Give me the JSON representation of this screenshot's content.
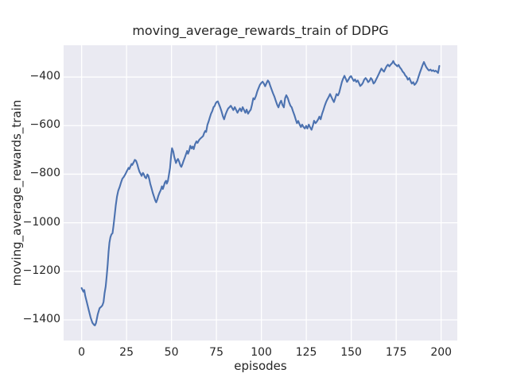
{
  "chart_data": {
    "type": "line",
    "title": "moving_average_rewards_train of DDPG",
    "xlabel": "episodes",
    "ylabel": "moving_average_rewards_train",
    "legend": "none",
    "grid": true,
    "background_color": "#EAEAF2",
    "grid_color": "#FFFFFF",
    "line_color": "#4C72B0",
    "text_color": "#262626",
    "xlim": [
      -10,
      209
    ],
    "ylim": [
      -1485,
      -269
    ],
    "x_tick_values": [
      0,
      25,
      50,
      75,
      100,
      125,
      150,
      175,
      200
    ],
    "x_tick_labels": [
      "0",
      "25",
      "50",
      "75",
      "100",
      "125",
      "150",
      "175",
      "200"
    ],
    "y_tick_values": [
      -400,
      -600,
      -800,
      -1000,
      -1200,
      -1400
    ],
    "y_tick_labels": [
      "−400",
      "−600",
      "−800",
      "−1000",
      "−1200",
      "−1400"
    ],
    "series": [
      {
        "name": "moving_average_rewards_train",
        "points": [
          [
            0,
            -1269
          ],
          [
            1,
            -1284
          ],
          [
            1.5,
            -1277
          ],
          [
            2,
            -1300
          ],
          [
            3,
            -1330
          ],
          [
            4,
            -1360
          ],
          [
            5,
            -1390
          ],
          [
            6,
            -1412
          ],
          [
            7,
            -1421
          ],
          [
            7.4,
            -1423
          ],
          [
            8,
            -1413
          ],
          [
            9,
            -1377
          ],
          [
            10,
            -1352
          ],
          [
            11,
            -1345
          ],
          [
            11.6,
            -1340
          ],
          [
            12.2,
            -1326
          ],
          [
            12.8,
            -1290
          ],
          [
            13.4,
            -1262
          ],
          [
            14,
            -1218
          ],
          [
            14.5,
            -1172
          ],
          [
            15,
            -1120
          ],
          [
            15.5,
            -1082
          ],
          [
            16,
            -1060
          ],
          [
            16.6,
            -1048
          ],
          [
            17.2,
            -1043
          ],
          [
            17.8,
            -1010
          ],
          [
            18.3,
            -975
          ],
          [
            19,
            -930
          ],
          [
            19.7,
            -892
          ],
          [
            20.4,
            -868
          ],
          [
            21.2,
            -852
          ],
          [
            22,
            -833
          ],
          [
            22.7,
            -818
          ],
          [
            23.4,
            -812
          ],
          [
            24.2,
            -802
          ],
          [
            25,
            -790
          ],
          [
            25.7,
            -780
          ],
          [
            26.1,
            -774
          ],
          [
            26.5,
            -779
          ],
          [
            27.1,
            -769
          ],
          [
            27.8,
            -758
          ],
          [
            28.2,
            -762
          ],
          [
            28.9,
            -752
          ],
          [
            29.6,
            -741
          ],
          [
            30.3,
            -745
          ],
          [
            31,
            -760
          ],
          [
            31.6,
            -776
          ],
          [
            32.2,
            -790
          ],
          [
            33,
            -801
          ],
          [
            33.4,
            -807
          ],
          [
            34.1,
            -795
          ],
          [
            34.7,
            -801
          ],
          [
            35.2,
            -812
          ],
          [
            35.9,
            -817
          ],
          [
            36.6,
            -801
          ],
          [
            37.1,
            -806
          ],
          [
            37.7,
            -822
          ],
          [
            38.2,
            -839
          ],
          [
            38.8,
            -855
          ],
          [
            39.6,
            -877
          ],
          [
            40.3,
            -893
          ],
          [
            41,
            -909
          ],
          [
            41.5,
            -916
          ],
          [
            42.1,
            -904
          ],
          [
            42.6,
            -891
          ],
          [
            43.3,
            -877
          ],
          [
            44,
            -866
          ],
          [
            44.7,
            -850
          ],
          [
            45.2,
            -861
          ],
          [
            45.7,
            -850
          ],
          [
            46.3,
            -834
          ],
          [
            47,
            -827
          ],
          [
            47.4,
            -839
          ],
          [
            48,
            -828
          ],
          [
            48.5,
            -807
          ],
          [
            49.2,
            -774
          ],
          [
            49.8,
            -722
          ],
          [
            50.3,
            -693
          ],
          [
            51,
            -707
          ],
          [
            51.5,
            -727
          ],
          [
            52.1,
            -744
          ],
          [
            52.5,
            -754
          ],
          [
            53.1,
            -743
          ],
          [
            53.6,
            -737
          ],
          [
            54.3,
            -749
          ],
          [
            55,
            -765
          ],
          [
            55.5,
            -770
          ],
          [
            56.1,
            -759
          ],
          [
            56.6,
            -748
          ],
          [
            57.3,
            -734
          ],
          [
            58,
            -719
          ],
          [
            58.7,
            -704
          ],
          [
            59.2,
            -716
          ],
          [
            59.8,
            -704
          ],
          [
            60.5,
            -683
          ],
          [
            61.2,
            -694
          ],
          [
            61.8,
            -686
          ],
          [
            62.4,
            -697
          ],
          [
            63.1,
            -677
          ],
          [
            63.9,
            -665
          ],
          [
            64.5,
            -671
          ],
          [
            65.3,
            -660
          ],
          [
            66.1,
            -653
          ],
          [
            66.9,
            -648
          ],
          [
            67.6,
            -643
          ],
          [
            68.2,
            -630
          ],
          [
            68.8,
            -622
          ],
          [
            69.3,
            -626
          ],
          [
            70,
            -597
          ],
          [
            70.6,
            -584
          ],
          [
            71.2,
            -570
          ],
          [
            72,
            -551
          ],
          [
            72.7,
            -540
          ],
          [
            73.4,
            -524
          ],
          [
            74,
            -519
          ],
          [
            74.6,
            -508
          ],
          [
            75.2,
            -502
          ],
          [
            75.8,
            -500
          ],
          [
            76.4,
            -512
          ],
          [
            77.1,
            -525
          ],
          [
            77.8,
            -541
          ],
          [
            78.6,
            -562
          ],
          [
            79.3,
            -574
          ],
          [
            80,
            -556
          ],
          [
            80.8,
            -541
          ],
          [
            81.5,
            -530
          ],
          [
            82.3,
            -524
          ],
          [
            83,
            -518
          ],
          [
            83.7,
            -527
          ],
          [
            84.4,
            -536
          ],
          [
            85.2,
            -524
          ],
          [
            86,
            -536
          ],
          [
            86.7,
            -547
          ],
          [
            87.4,
            -537
          ],
          [
            88.1,
            -529
          ],
          [
            88.9,
            -541
          ],
          [
            89.6,
            -524
          ],
          [
            90.4,
            -536
          ],
          [
            91.1,
            -547
          ],
          [
            91.8,
            -534
          ],
          [
            92.6,
            -551
          ],
          [
            93.3,
            -542
          ],
          [
            94.1,
            -534
          ],
          [
            94.8,
            -513
          ],
          [
            95.5,
            -487
          ],
          [
            96.2,
            -492
          ],
          [
            97,
            -478
          ],
          [
            97.7,
            -460
          ],
          [
            98.5,
            -445
          ],
          [
            99.2,
            -432
          ],
          [
            100,
            -424
          ],
          [
            100.7,
            -419
          ],
          [
            101.4,
            -427
          ],
          [
            102.1,
            -438
          ],
          [
            102.8,
            -426
          ],
          [
            103.6,
            -414
          ],
          [
            104.3,
            -421
          ],
          [
            105,
            -437
          ],
          [
            105.8,
            -453
          ],
          [
            106.5,
            -467
          ],
          [
            107.3,
            -481
          ],
          [
            108,
            -497
          ],
          [
            108.8,
            -514
          ],
          [
            109.5,
            -525
          ],
          [
            110.3,
            -507
          ],
          [
            111,
            -497
          ],
          [
            111.7,
            -514
          ],
          [
            112.5,
            -525
          ],
          [
            113.2,
            -487
          ],
          [
            113.9,
            -475
          ],
          [
            114.7,
            -487
          ],
          [
            115.4,
            -503
          ],
          [
            116.2,
            -518
          ],
          [
            116.9,
            -525
          ],
          [
            117.6,
            -541
          ],
          [
            118.4,
            -557
          ],
          [
            119.1,
            -574
          ],
          [
            119.8,
            -590
          ],
          [
            120.5,
            -581
          ],
          [
            121.3,
            -596
          ],
          [
            122,
            -606
          ],
          [
            122.7,
            -596
          ],
          [
            123.5,
            -606
          ],
          [
            124.2,
            -612
          ],
          [
            124.9,
            -601
          ],
          [
            125.6,
            -612
          ],
          [
            126.4,
            -596
          ],
          [
            127.1,
            -607
          ],
          [
            127.9,
            -617
          ],
          [
            128.6,
            -601
          ],
          [
            129.3,
            -580
          ],
          [
            130.1,
            -590
          ],
          [
            130.8,
            -584
          ],
          [
            131.6,
            -574
          ],
          [
            132.3,
            -563
          ],
          [
            133,
            -574
          ],
          [
            133.8,
            -551
          ],
          [
            134.5,
            -536
          ],
          [
            135.2,
            -519
          ],
          [
            136,
            -503
          ],
          [
            136.7,
            -492
          ],
          [
            137.5,
            -481
          ],
          [
            138.2,
            -470
          ],
          [
            138.9,
            -481
          ],
          [
            139.6,
            -492
          ],
          [
            140.4,
            -503
          ],
          [
            141.1,
            -487
          ],
          [
            141.8,
            -470
          ],
          [
            142.6,
            -476
          ],
          [
            143.3,
            -464
          ],
          [
            144,
            -443
          ],
          [
            144.8,
            -420
          ],
          [
            145.5,
            -406
          ],
          [
            146.2,
            -395
          ],
          [
            147,
            -408
          ],
          [
            147.7,
            -420
          ],
          [
            148.5,
            -410
          ],
          [
            149.2,
            -400
          ],
          [
            149.9,
            -396
          ],
          [
            150.6,
            -406
          ],
          [
            151.4,
            -416
          ],
          [
            152.1,
            -410
          ],
          [
            152.8,
            -420
          ],
          [
            153.6,
            -414
          ],
          [
            154.3,
            -425
          ],
          [
            155,
            -437
          ],
          [
            155.8,
            -431
          ],
          [
            156.5,
            -424
          ],
          [
            157.2,
            -411
          ],
          [
            158,
            -404
          ],
          [
            158.7,
            -411
          ],
          [
            159.4,
            -421
          ],
          [
            160.2,
            -415
          ],
          [
            160.9,
            -404
          ],
          [
            161.6,
            -411
          ],
          [
            162.4,
            -427
          ],
          [
            163.1,
            -421
          ],
          [
            163.8,
            -411
          ],
          [
            164.6,
            -399
          ],
          [
            165.3,
            -388
          ],
          [
            166,
            -377
          ],
          [
            166.8,
            -365
          ],
          [
            167.5,
            -372
          ],
          [
            168.2,
            -378
          ],
          [
            169,
            -365
          ],
          [
            169.7,
            -355
          ],
          [
            170.4,
            -349
          ],
          [
            171.2,
            -356
          ],
          [
            171.9,
            -349
          ],
          [
            172.7,
            -343
          ],
          [
            173.4,
            -334
          ],
          [
            174.1,
            -345
          ],
          [
            174.9,
            -350
          ],
          [
            175.6,
            -356
          ],
          [
            176.3,
            -350
          ],
          [
            177.1,
            -361
          ],
          [
            177.8,
            -367
          ],
          [
            178.6,
            -378
          ],
          [
            179.3,
            -383
          ],
          [
            180.1,
            -394
          ],
          [
            180.8,
            -399
          ],
          [
            181.5,
            -411
          ],
          [
            182.3,
            -404
          ],
          [
            183,
            -416
          ],
          [
            183.7,
            -427
          ],
          [
            184.5,
            -421
          ],
          [
            185.2,
            -432
          ],
          [
            185.9,
            -427
          ],
          [
            186.7,
            -416
          ],
          [
            187.4,
            -399
          ],
          [
            188.1,
            -383
          ],
          [
            188.9,
            -367
          ],
          [
            189.6,
            -352
          ],
          [
            190.4,
            -338
          ],
          [
            191.1,
            -349
          ],
          [
            191.8,
            -360
          ],
          [
            192.6,
            -368
          ],
          [
            193.3,
            -373
          ],
          [
            194.1,
            -369
          ],
          [
            194.8,
            -375
          ],
          [
            195.6,
            -372
          ],
          [
            196.3,
            -377
          ],
          [
            197,
            -374
          ],
          [
            197.8,
            -379
          ],
          [
            198.3,
            -383
          ],
          [
            199,
            -354
          ]
        ]
      }
    ]
  }
}
